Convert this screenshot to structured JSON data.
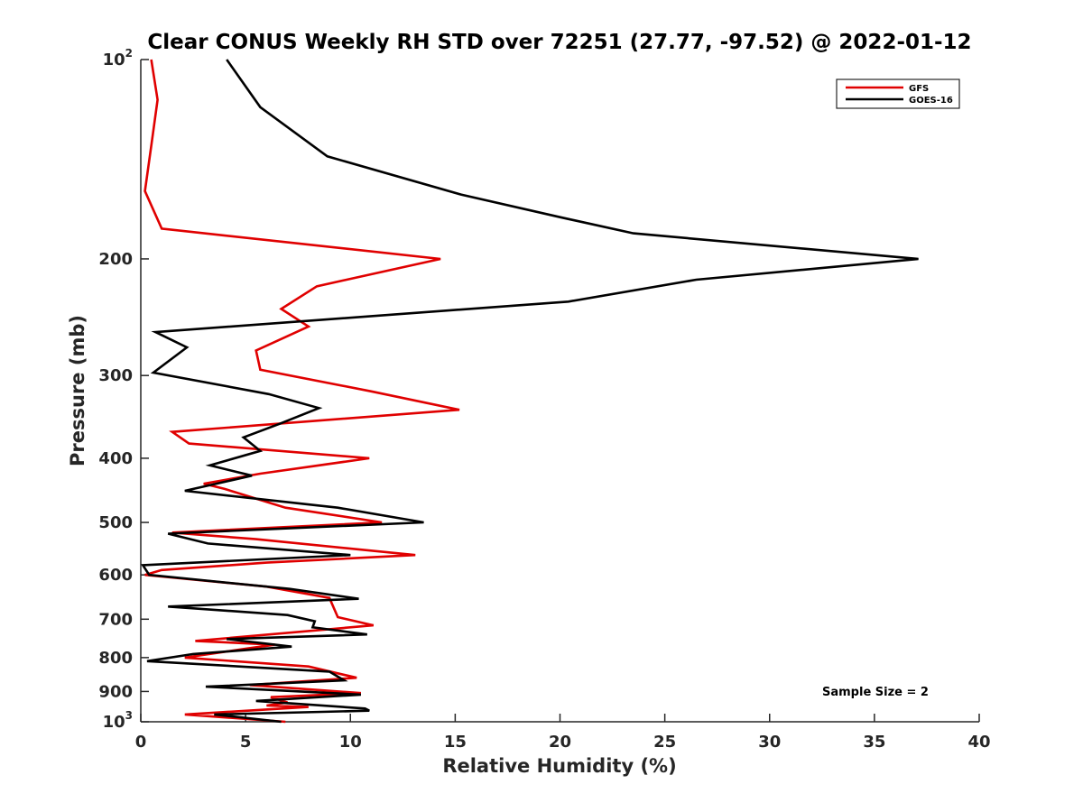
{
  "chart_data": {
    "type": "line",
    "title": "Clear CONUS Weekly RH STD over 72251 (27.77, -97.52) @ 2022-01-12",
    "xlabel": "Relative Humidity (%)",
    "ylabel": "Pressure (mb)",
    "xlim": [
      0,
      40
    ],
    "ylim": [
      100,
      1000
    ],
    "y_scale": "log",
    "y_reversed": true,
    "x_ticks": [
      0,
      5,
      10,
      15,
      20,
      25,
      30,
      35,
      40
    ],
    "x_tick_labels": [
      "0",
      "5",
      "10",
      "15",
      "20",
      "25",
      "30",
      "35",
      "40"
    ],
    "y_ticks": [
      {
        "value": 100,
        "base": "10",
        "exp": "2"
      },
      {
        "value": 200,
        "base": "200",
        "exp": ""
      },
      {
        "value": 300,
        "base": "300",
        "exp": ""
      },
      {
        "value": 400,
        "base": "400",
        "exp": ""
      },
      {
        "value": 500,
        "base": "500",
        "exp": ""
      },
      {
        "value": 600,
        "base": "600",
        "exp": ""
      },
      {
        "value": 700,
        "base": "700",
        "exp": ""
      },
      {
        "value": 800,
        "base": "800",
        "exp": ""
      },
      {
        "value": 900,
        "base": "900",
        "exp": ""
      },
      {
        "value": 1000,
        "base": "10",
        "exp": "3"
      }
    ],
    "grid": false,
    "legend_position": "top-right",
    "annotation": "Sample Size = 2",
    "series": [
      {
        "name": "GFS",
        "color": "#e00000",
        "points": [
          [
            0.5,
            100
          ],
          [
            0.8,
            115
          ],
          [
            0.5,
            135
          ],
          [
            0.2,
            158
          ],
          [
            1.0,
            180
          ],
          [
            14.3,
            200
          ],
          [
            8.4,
            220
          ],
          [
            6.7,
            238
          ],
          [
            8.0,
            253
          ],
          [
            5.5,
            275
          ],
          [
            5.7,
            294
          ],
          [
            11.0,
            317
          ],
          [
            15.2,
            338
          ],
          [
            1.5,
            365
          ],
          [
            2.3,
            380
          ],
          [
            10.9,
            400
          ],
          [
            5.7,
            422
          ],
          [
            3.0,
            437
          ],
          [
            4.0,
            445
          ],
          [
            6.9,
            475
          ],
          [
            11.5,
            500
          ],
          [
            1.5,
            518
          ],
          [
            5.5,
            530
          ],
          [
            13.1,
            560
          ],
          [
            6.0,
            575
          ],
          [
            1.0,
            590
          ],
          [
            0.2,
            600
          ],
          [
            6.0,
            625
          ],
          [
            9.0,
            650
          ],
          [
            9.4,
            695
          ],
          [
            11.1,
            715
          ],
          [
            2.6,
            755
          ],
          [
            6.4,
            765
          ],
          [
            5.1,
            775
          ],
          [
            2.1,
            800
          ],
          [
            8.0,
            825
          ],
          [
            10.3,
            858
          ],
          [
            5.2,
            880
          ],
          [
            10.5,
            905
          ],
          [
            6.2,
            918
          ],
          [
            7.0,
            935
          ],
          [
            6.0,
            945
          ],
          [
            8.0,
            950
          ],
          [
            2.1,
            975
          ],
          [
            6.9,
            1000
          ]
        ]
      },
      {
        "name": "GOES-16",
        "color": "#000000",
        "points": [
          [
            4.1,
            100
          ],
          [
            5.7,
            118
          ],
          [
            8.9,
            140
          ],
          [
            15.3,
            160
          ],
          [
            20.0,
            173
          ],
          [
            23.5,
            183
          ],
          [
            37.1,
            200
          ],
          [
            26.5,
            215
          ],
          [
            20.4,
            232
          ],
          [
            0.7,
            258
          ],
          [
            2.2,
            272
          ],
          [
            0.6,
            297
          ],
          [
            6.1,
            320
          ],
          [
            8.5,
            336
          ],
          [
            6.6,
            355
          ],
          [
            4.9,
            372
          ],
          [
            5.7,
            390
          ],
          [
            3.3,
            410
          ],
          [
            5.3,
            425
          ],
          [
            2.1,
            448
          ],
          [
            9.4,
            475
          ],
          [
            13.5,
            500
          ],
          [
            1.3,
            520
          ],
          [
            3.2,
            538
          ],
          [
            10.0,
            560
          ],
          [
            0.1,
            580
          ],
          [
            0.4,
            600
          ],
          [
            7.1,
            630
          ],
          [
            10.4,
            652
          ],
          [
            1.3,
            670
          ],
          [
            7.0,
            690
          ],
          [
            8.3,
            705
          ],
          [
            8.2,
            720
          ],
          [
            10.8,
            738
          ],
          [
            4.1,
            750
          ],
          [
            7.2,
            770
          ],
          [
            2.5,
            790
          ],
          [
            0.3,
            810
          ],
          [
            9.0,
            840
          ],
          [
            9.7,
            866
          ],
          [
            3.1,
            885
          ],
          [
            10.5,
            910
          ],
          [
            5.5,
            930
          ],
          [
            10.7,
            955
          ],
          [
            10.9,
            962
          ],
          [
            3.5,
            975
          ],
          [
            6.7,
            1000
          ]
        ]
      }
    ]
  }
}
